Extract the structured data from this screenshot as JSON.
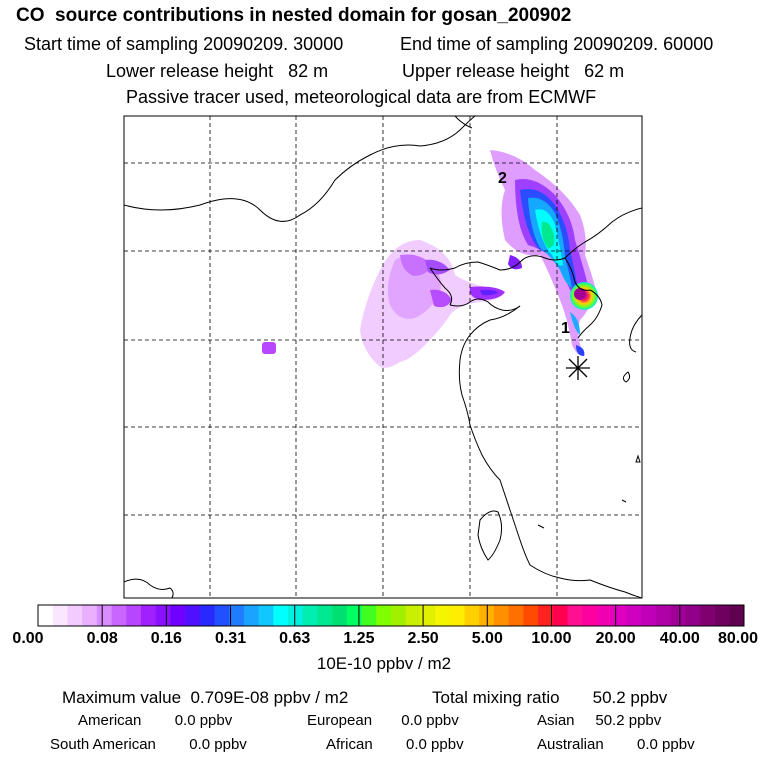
{
  "header": {
    "title": "CO  source contributions in nested domain for gosan_200902",
    "start_time": "Start time of sampling 20090209. 30000",
    "end_time": "End time of sampling 20090209. 60000",
    "lower_height": "Lower release height   82 m",
    "upper_height": "Upper release height   62 m",
    "tracer_note": "Passive tracer used, meteorological data are from ECMWF"
  },
  "map": {
    "point_labels": [
      "1",
      "2"
    ],
    "receptor_marker": "asterisk-icon"
  },
  "colorbar": {
    "tick_labels": [
      "0.00",
      "0.08",
      "0.16",
      "0.31",
      "0.63",
      "1.25",
      "2.50",
      "5.00",
      "10.00",
      "20.00",
      "40.00",
      "80.00"
    ],
    "unit": "10E-10 ppbv / m2",
    "colors": [
      "#ffffff",
      "#fbe6ff",
      "#f3ccff",
      "#e8b0ff",
      "#d98cff",
      "#c966ff",
      "#b845ff",
      "#a020ff",
      "#8a10ff",
      "#7000ff",
      "#5010ff",
      "#2828ff",
      "#2050ff",
      "#1f7cff",
      "#1aa3ff",
      "#10c8ff",
      "#00ffff",
      "#00f0e0",
      "#00eeb0",
      "#00e890",
      "#00e070",
      "#00ff60",
      "#40ff20",
      "#80ff00",
      "#a0f000",
      "#c8f000",
      "#e0f000",
      "#f5f500",
      "#ffee00",
      "#ffd000",
      "#ffb000",
      "#ff9000",
      "#ff7000",
      "#ff4a00",
      "#ff2020",
      "#ff0050",
      "#ff1090",
      "#ff00a0",
      "#f000b0",
      "#e000c0",
      "#d000c0",
      "#c000b8",
      "#b000a8",
      "#a00098",
      "#900088",
      "#800070",
      "#700060",
      "#600050"
    ]
  },
  "stats": {
    "max_value": "Maximum value  0.709E-08 ppbv / m2",
    "total_mixing": "Total mixing ratio       50.2 ppbv",
    "american": "American        0.0 ppbv",
    "european": "European       0.0 ppbv",
    "asian": "Asian     50.2 ppbv",
    "south_american": "South American        0.0 ppbv",
    "african": "African        0.0 ppbv",
    "australian": "Australian        0.0 ppbv"
  }
}
